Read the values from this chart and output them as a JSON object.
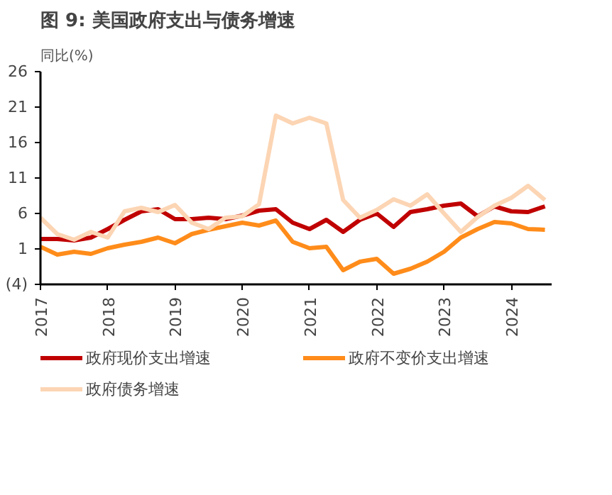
{
  "chart_data": {
    "type": "line",
    "title": "图 9: 美国政府支出与债务增速",
    "ylabel": "同比(%)",
    "x": [
      2017.0,
      2017.25,
      2017.5,
      2017.75,
      2018.0,
      2018.25,
      2018.5,
      2018.75,
      2019.0,
      2019.25,
      2019.5,
      2019.75,
      2020.0,
      2020.25,
      2020.5,
      2020.75,
      2021.0,
      2021.25,
      2021.5,
      2021.75,
      2022.0,
      2022.25,
      2022.5,
      2022.75,
      2023.0,
      2023.25,
      2023.5,
      2023.75,
      2024.0,
      2024.25,
      2024.5
    ],
    "series": [
      {
        "name": "政府现价支出增速",
        "color": "#c00000",
        "values": [
          2.4,
          2.4,
          2.2,
          2.6,
          3.8,
          5.1,
          6.3,
          6.6,
          5.2,
          5.2,
          5.4,
          5.2,
          5.7,
          6.4,
          6.6,
          4.7,
          3.8,
          5.1,
          3.4,
          5.1,
          6.0,
          4.1,
          6.2,
          6.6,
          7.1,
          7.4,
          5.6,
          7.0,
          6.3,
          6.2,
          7.0
        ]
      },
      {
        "name": "政府不变价支出增速",
        "color": "#ff8c1a",
        "values": [
          1.3,
          0.2,
          0.6,
          0.3,
          1.1,
          1.6,
          2.0,
          2.6,
          1.8,
          3.1,
          3.7,
          4.2,
          4.7,
          4.3,
          5.0,
          2.0,
          1.1,
          1.3,
          -2.0,
          -0.8,
          -0.4,
          -2.5,
          -1.8,
          -0.8,
          0.6,
          2.6,
          3.8,
          4.8,
          4.6,
          3.8,
          3.7
        ]
      },
      {
        "name": "政府债务增速",
        "color": "#fcd5b4",
        "values": [
          5.4,
          3.1,
          2.3,
          3.4,
          2.6,
          6.3,
          6.8,
          6.2,
          7.2,
          4.7,
          3.8,
          5.4,
          5.6,
          7.3,
          19.8,
          18.7,
          19.5,
          18.7,
          7.9,
          5.4,
          6.5,
          8.0,
          7.1,
          8.7,
          6.0,
          3.4,
          5.5,
          7.1,
          8.2,
          9.9,
          7.9
        ]
      }
    ],
    "xlim": [
      2017,
      2024.6
    ],
    "xticks": [
      2017,
      2018,
      2019,
      2020,
      2021,
      2022,
      2023,
      2024
    ],
    "ylim": [
      -4,
      26
    ],
    "yticks": [
      {
        "value": -4,
        "label": "(4)"
      },
      1,
      6,
      11,
      16,
      21,
      26
    ],
    "legend": "bottom",
    "line_style": "solid"
  }
}
